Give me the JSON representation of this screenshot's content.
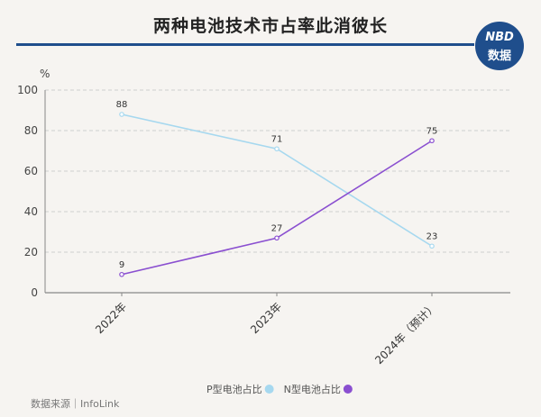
{
  "header": {
    "title": "两种电池技术市占率此消彼长"
  },
  "logo": {
    "top": "NBD",
    "bottom": "数据",
    "color": "#1f4e8c"
  },
  "footer": {
    "source": "数据来源｜InfoLink"
  },
  "chart_data": {
    "type": "line",
    "title": "两种电池技术市占率此消彼长",
    "ylabel": "%",
    "xlabel": "",
    "categories": [
      "2022年",
      "2023年",
      "2024年（预计）"
    ],
    "ylim": [
      0,
      100
    ],
    "yticks": [
      0,
      20,
      40,
      60,
      80,
      100
    ],
    "grid": true,
    "legend_position": "bottom",
    "series": [
      {
        "name": "P型电池占比",
        "values": [
          88,
          71,
          23
        ],
        "color": "#a6d8ef"
      },
      {
        "name": "N型电池占比",
        "values": [
          9,
          27,
          75
        ],
        "color": "#8a4fd0"
      }
    ]
  }
}
